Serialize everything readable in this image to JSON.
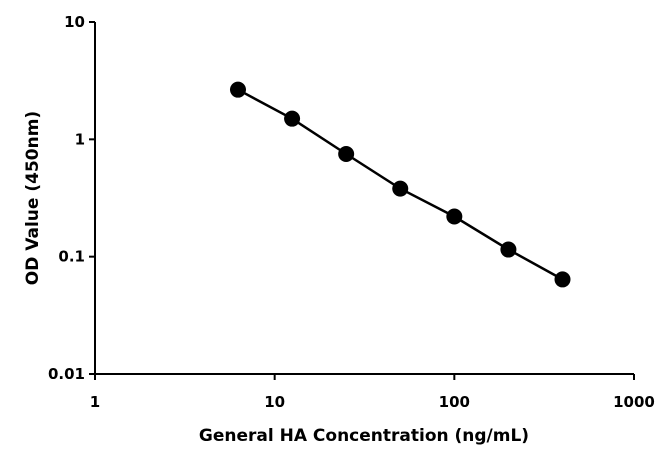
{
  "chart_data": {
    "type": "scatter",
    "title": "",
    "xlabel": "General HA Concentration (ng/mL)",
    "ylabel": "OD Value (450nm)",
    "x_scale": "log",
    "y_scale": "log",
    "xlim": [
      1,
      1000
    ],
    "ylim": [
      0.01,
      10
    ],
    "x_ticks": [
      1,
      10,
      100,
      1000
    ],
    "x_tick_labels": [
      "1",
      "10",
      "100",
      "1000"
    ],
    "y_ticks": [
      0.01,
      0.1,
      1,
      10
    ],
    "y_tick_labels": [
      "0.01",
      "0.1",
      "1",
      "10"
    ],
    "grid": false,
    "legend": "none",
    "series": [
      {
        "x": [
          6.25,
          12.5,
          25,
          50,
          100,
          200,
          400
        ],
        "y": [
          2.65,
          1.5,
          0.75,
          0.38,
          0.22,
          0.115,
          0.064
        ],
        "marker_color": "#000000",
        "line_color": "#000000"
      }
    ]
  }
}
